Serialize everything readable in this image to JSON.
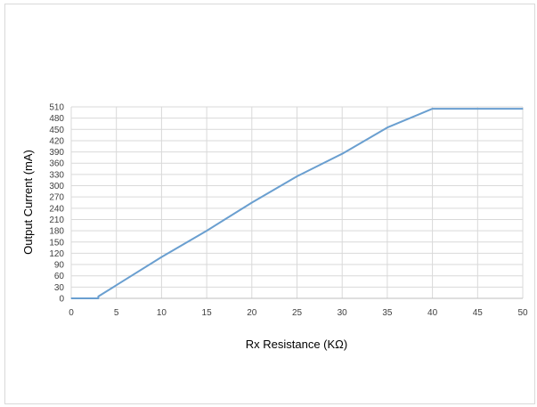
{
  "chart_data": {
    "type": "line",
    "title": "",
    "xlabel": "Rx Resistance (KΩ)",
    "ylabel": "Output Current (mA)",
    "xlim": [
      0,
      50
    ],
    "ylim": [
      0,
      510
    ],
    "x_ticks": [
      0,
      5,
      10,
      15,
      20,
      25,
      30,
      35,
      40,
      45,
      50
    ],
    "y_ticks": [
      0,
      30,
      60,
      90,
      120,
      150,
      180,
      210,
      240,
      270,
      300,
      330,
      360,
      390,
      420,
      450,
      480,
      510
    ],
    "grid": true,
    "legend": "none",
    "series": [
      {
        "color": "#6a9fd0",
        "x": [
          0,
          3,
          3,
          5,
          10,
          15,
          20,
          25,
          30,
          35,
          40,
          45,
          50
        ],
        "y": [
          0,
          0,
          5,
          35,
          110,
          180,
          255,
          325,
          385,
          455,
          505,
          505,
          505
        ]
      }
    ]
  }
}
